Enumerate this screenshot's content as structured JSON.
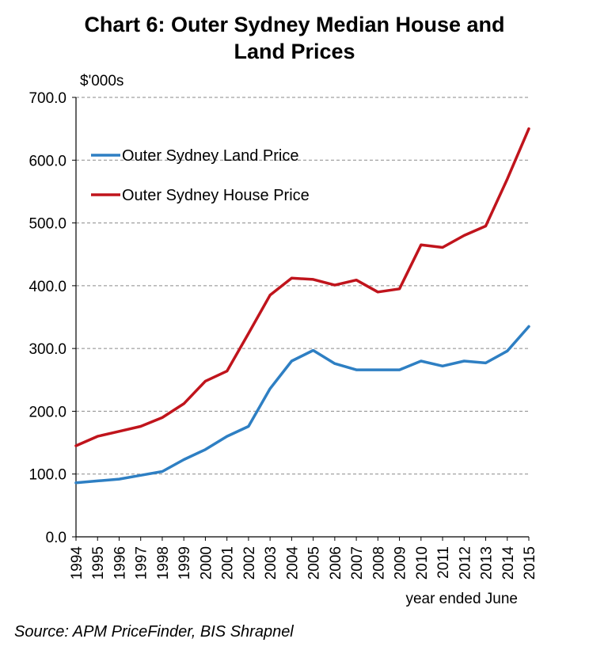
{
  "chart_data": {
    "type": "line",
    "title": [
      "Chart 6: Outer Sydney Median House and",
      "Land Prices"
    ],
    "ylabel": "$'000s",
    "xlabel": "year ended June",
    "source": "Source: APM PriceFinder, BIS Shrapnel",
    "ylim": [
      0,
      700
    ],
    "yticks": [
      0,
      100,
      200,
      300,
      400,
      500,
      600,
      700
    ],
    "ytick_labels": [
      "0.0",
      "100.0",
      "200.0",
      "300.0",
      "400.0",
      "500.0",
      "600.0",
      "700.0"
    ],
    "grid": true,
    "legend_position": "upper-left",
    "x": [
      "1994",
      "1995",
      "1996",
      "1997",
      "1998",
      "1999",
      "2000",
      "2001",
      "2002",
      "2003",
      "2004",
      "2005",
      "2006",
      "2007",
      "2008",
      "2009",
      "2010",
      "2011",
      "2012",
      "2013",
      "2014",
      "2015"
    ],
    "series": [
      {
        "name": "Outer Sydney Land Price",
        "color": "#2e7fc3",
        "values": [
          86,
          89,
          92,
          98,
          104,
          123,
          139,
          160,
          176,
          236,
          280,
          297,
          276,
          266,
          266,
          266,
          280,
          272,
          280,
          277,
          296,
          335
        ]
      },
      {
        "name": "Outer Sydney House Price",
        "color": "#c0141c",
        "values": [
          145,
          160,
          168,
          176,
          190,
          212,
          248,
          264,
          324,
          385,
          412,
          410,
          401,
          409,
          390,
          395,
          465,
          461,
          480,
          495,
          570,
          650
        ]
      }
    ]
  }
}
